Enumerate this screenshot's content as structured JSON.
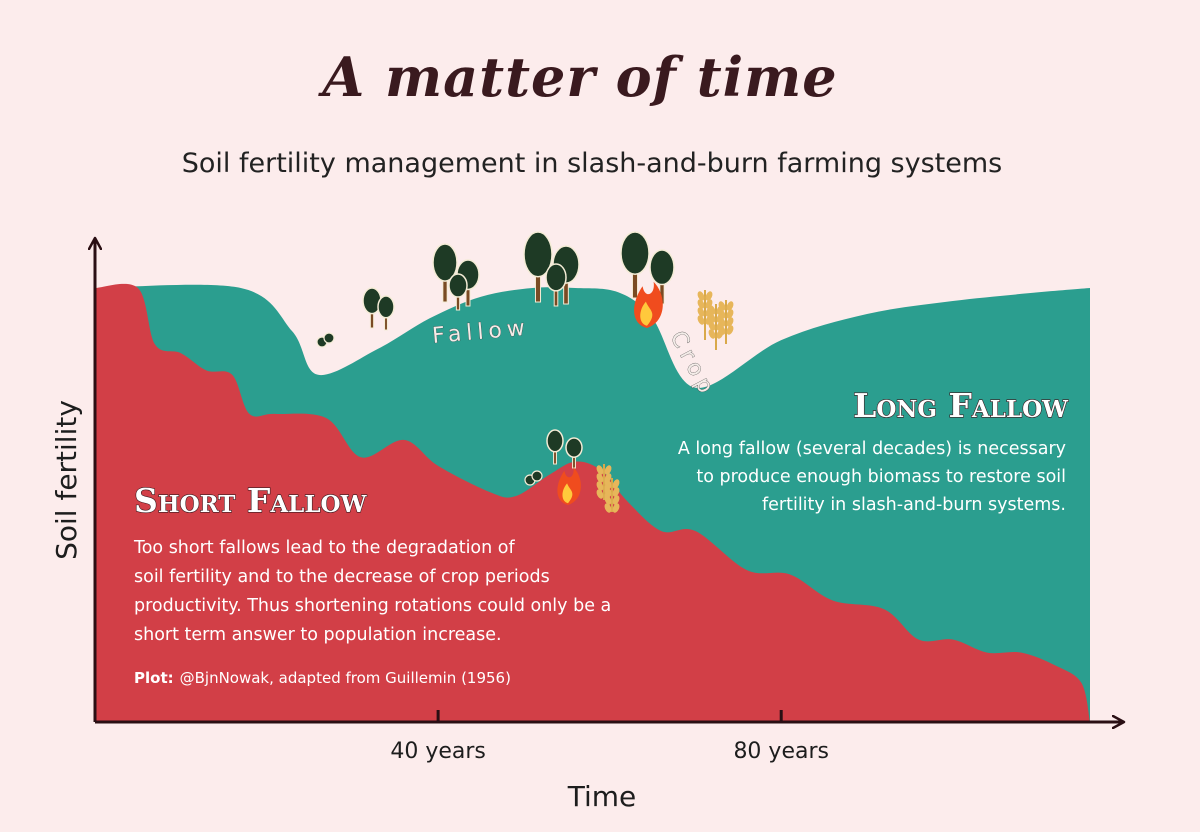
{
  "title": "A matter of time",
  "subtitle": "Soil fertility management in slash-and-burn farming systems",
  "colors": {
    "background": "#fcecec",
    "long_fallow": "#2b9e8f",
    "short_fallow": "#d23f47",
    "axis": "#2a0f14"
  },
  "icons": [
    "tree-icon",
    "fire-icon",
    "wheat-icon",
    "sapling-icon"
  ],
  "short_fallow": {
    "heading": "Short Fallow",
    "lines": [
      "Too short fallows lead to the degradation of",
      "soil fertility and to the decrease of crop periods",
      "productivity. Thus shortening rotations could only be a",
      "short term answer to population increase."
    ]
  },
  "long_fallow": {
    "heading": "Long Fallow",
    "lines": [
      "A long fallow (several decades) is necessary",
      "to produce enough biomass to restore soil",
      "fertility in slash-and-burn systems."
    ]
  },
  "credit": {
    "label": "Plot:",
    "text": "@BjnNowak, adapted from Guillemin (1956)"
  },
  "inline_labels": {
    "fallow": "Fallow",
    "crop": "Crop"
  },
  "chart_data": {
    "type": "area",
    "title": "A matter of time",
    "subtitle": "Soil fertility management in slash-and-burn farming systems",
    "xlabel": "Time",
    "ylabel": "Soil fertility",
    "xlim": [
      0,
      116
    ],
    "ylim": [
      0,
      100
    ],
    "ticks": [
      {
        "value": 40,
        "label": "40 years"
      },
      {
        "value": 80,
        "label": "80 years"
      }
    ],
    "grid": false,
    "series": [
      {
        "name": "Long Fallow",
        "x": [
          0,
          17,
          23,
          26,
          33,
          39,
          45,
          51,
          56,
          61,
          65,
          70,
          80,
          90,
          100,
          110,
          116
        ],
        "y": [
          100,
          100,
          90,
          80,
          86,
          93,
          98,
          100,
          100,
          99,
          93,
          77,
          88,
          94,
          97,
          99,
          100
        ]
      },
      {
        "name": "Short Fallow",
        "x": [
          0,
          5,
          7,
          10,
          13,
          16,
          18,
          21,
          27,
          31,
          36,
          40,
          46,
          49,
          53,
          56,
          59,
          62,
          66,
          70,
          76,
          81,
          86,
          92,
          96,
          100,
          104,
          108,
          112,
          115,
          116
        ],
        "y": [
          100,
          100,
          87,
          85,
          81,
          80,
          71,
          71,
          70,
          61,
          65,
          59,
          53,
          52,
          57,
          60,
          58,
          51,
          44,
          44,
          35,
          34,
          28,
          26,
          19,
          19,
          16,
          16,
          13,
          9,
          0
        ]
      }
    ]
  }
}
